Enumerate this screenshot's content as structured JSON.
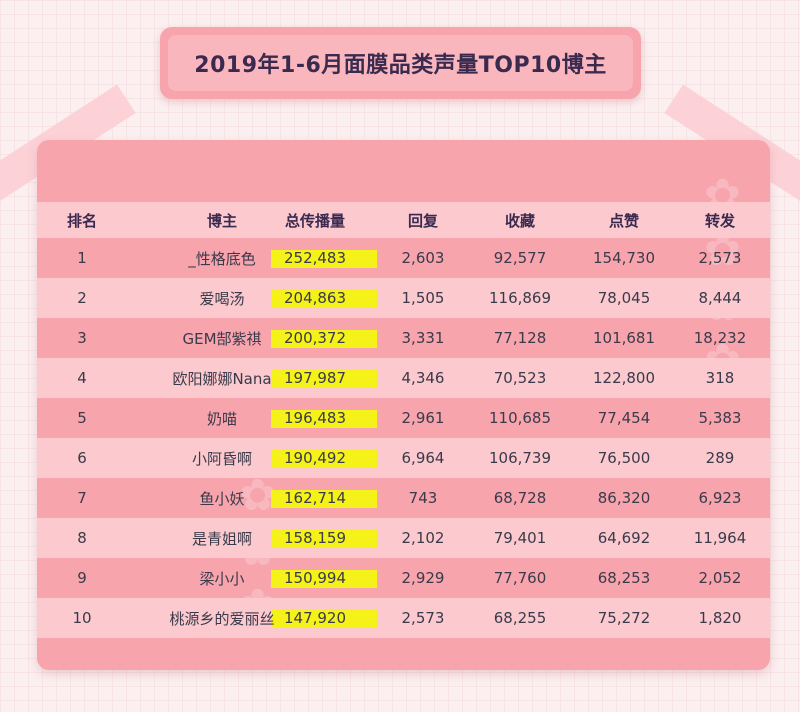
{
  "title": "2019年1-6月面膜品类声量TOP10博主",
  "accent_color": "#f7a4ad",
  "highlight_color": "#f5f219",
  "chart_data": {
    "type": "table",
    "columns": [
      "排名",
      "博主",
      "总传播量",
      "回复",
      "收藏",
      "点赞",
      "转发"
    ],
    "rows": [
      [
        "1",
        "_性格底色",
        "252,483",
        "2,603",
        "92,577",
        "154,730",
        "2,573"
      ],
      [
        "2",
        "爱喝汤",
        "204,863",
        "1,505",
        "116,869",
        "78,045",
        "8,444"
      ],
      [
        "3",
        "GEM郜紫祺",
        "200,372",
        "3,331",
        "77,128",
        "101,681",
        "18,232"
      ],
      [
        "4",
        "欧阳娜娜Nana",
        "197,987",
        "4,346",
        "70,523",
        "122,800",
        "318"
      ],
      [
        "5",
        "奶喵",
        "196,483",
        "2,961",
        "110,685",
        "77,454",
        "5,383"
      ],
      [
        "6",
        "小阿昏啊",
        "190,492",
        "6,964",
        "106,739",
        "76,500",
        "289"
      ],
      [
        "7",
        "鱼小妖",
        "162,714",
        "743",
        "68,728",
        "86,320",
        "6,923"
      ],
      [
        "8",
        "是青姐啊",
        "158,159",
        "2,102",
        "79,401",
        "64,692",
        "11,964"
      ],
      [
        "9",
        "梁小小",
        "150,994",
        "2,929",
        "77,760",
        "68,253",
        "2,052"
      ],
      [
        "10",
        "桃源乡的爱丽丝",
        "147,920",
        "2,573",
        "68,255",
        "75,272",
        "1,820"
      ]
    ]
  }
}
